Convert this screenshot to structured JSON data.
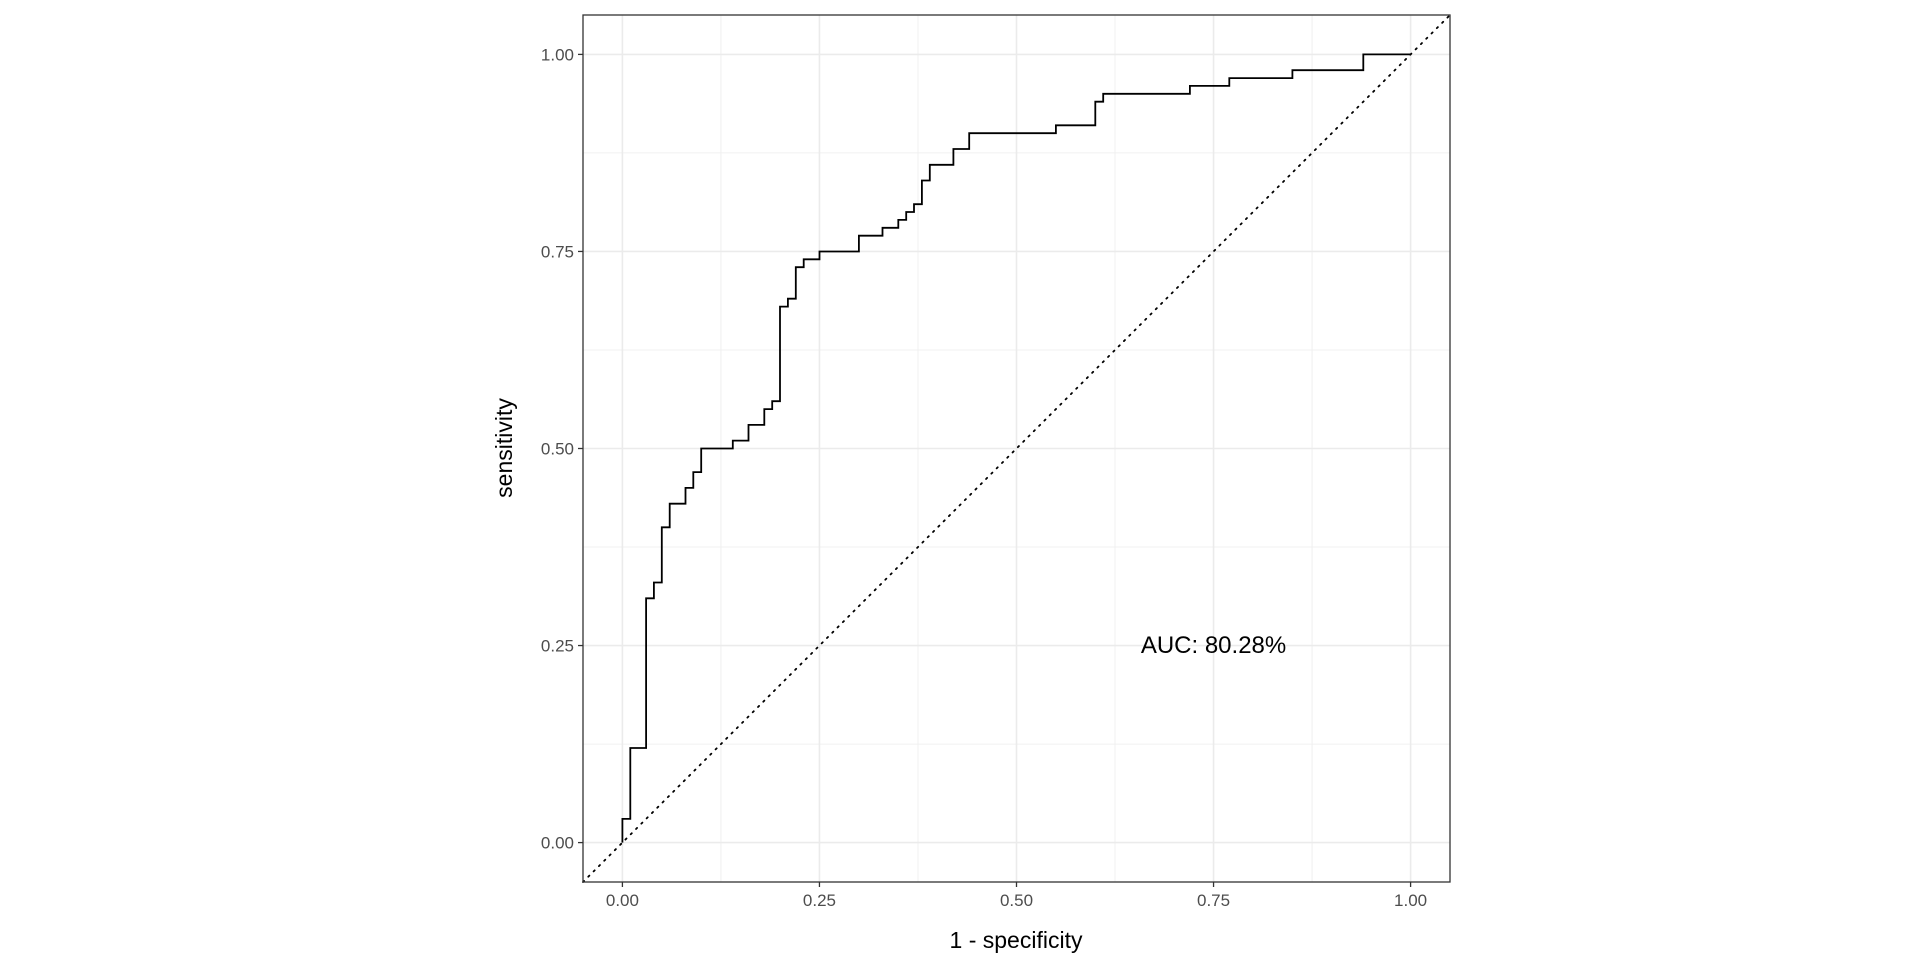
{
  "chart_data": {
    "type": "line",
    "title": "",
    "xlabel": "1 - specificity",
    "ylabel": "sensitivity",
    "xlim": [
      -0.05,
      1.05
    ],
    "ylim": [
      -0.05,
      1.05
    ],
    "grid": true,
    "xticks": [
      0,
      0.25,
      0.5,
      0.75,
      1
    ],
    "xtick_labels": [
      "0.00",
      "0.25",
      "0.50",
      "0.75",
      "1.00"
    ],
    "yticks": [
      0,
      0.25,
      0.5,
      0.75,
      1
    ],
    "ytick_labels": [
      "0.00",
      "0.25",
      "0.50",
      "0.75",
      "1.00"
    ],
    "annotation": {
      "text": "AUC: 80.28%",
      "x": 0.75,
      "y": 0.25
    },
    "series": [
      {
        "name": "ROC curve",
        "style": "step",
        "color": "#000000",
        "x": [
          0,
          0,
          0.01,
          0.01,
          0.03,
          0.03,
          0.04,
          0.04,
          0.05,
          0.05,
          0.06,
          0.06,
          0.08,
          0.08,
          0.09,
          0.09,
          0.1,
          0.1,
          0.14,
          0.14,
          0.16,
          0.16,
          0.18,
          0.18,
          0.19,
          0.19,
          0.2,
          0.2,
          0.21,
          0.21,
          0.22,
          0.22,
          0.23,
          0.23,
          0.25,
          0.25,
          0.3,
          0.3,
          0.33,
          0.33,
          0.35,
          0.35,
          0.36,
          0.36,
          0.37,
          0.37,
          0.38,
          0.38,
          0.39,
          0.39,
          0.42,
          0.42,
          0.44,
          0.44,
          0.55,
          0.55,
          0.6,
          0.6,
          0.61,
          0.61,
          0.72,
          0.72,
          0.77,
          0.77,
          0.85,
          0.85,
          0.94,
          0.94,
          1.0
        ],
        "y": [
          0,
          0.03,
          0.03,
          0.12,
          0.12,
          0.31,
          0.31,
          0.33,
          0.33,
          0.4,
          0.4,
          0.43,
          0.43,
          0.45,
          0.45,
          0.47,
          0.47,
          0.5,
          0.5,
          0.51,
          0.51,
          0.53,
          0.53,
          0.55,
          0.55,
          0.56,
          0.56,
          0.68,
          0.68,
          0.69,
          0.69,
          0.73,
          0.73,
          0.74,
          0.74,
          0.75,
          0.75,
          0.77,
          0.77,
          0.78,
          0.78,
          0.79,
          0.79,
          0.8,
          0.8,
          0.81,
          0.81,
          0.84,
          0.84,
          0.86,
          0.86,
          0.88,
          0.88,
          0.9,
          0.9,
          0.91,
          0.91,
          0.94,
          0.94,
          0.95,
          0.95,
          0.96,
          0.96,
          0.97,
          0.97,
          0.98,
          0.98,
          1.0,
          1.0
        ]
      },
      {
        "name": "chance line",
        "style": "dotted",
        "color": "#000000",
        "x": [
          -0.05,
          1.05
        ],
        "y": [
          -0.05,
          1.05
        ]
      }
    ]
  }
}
